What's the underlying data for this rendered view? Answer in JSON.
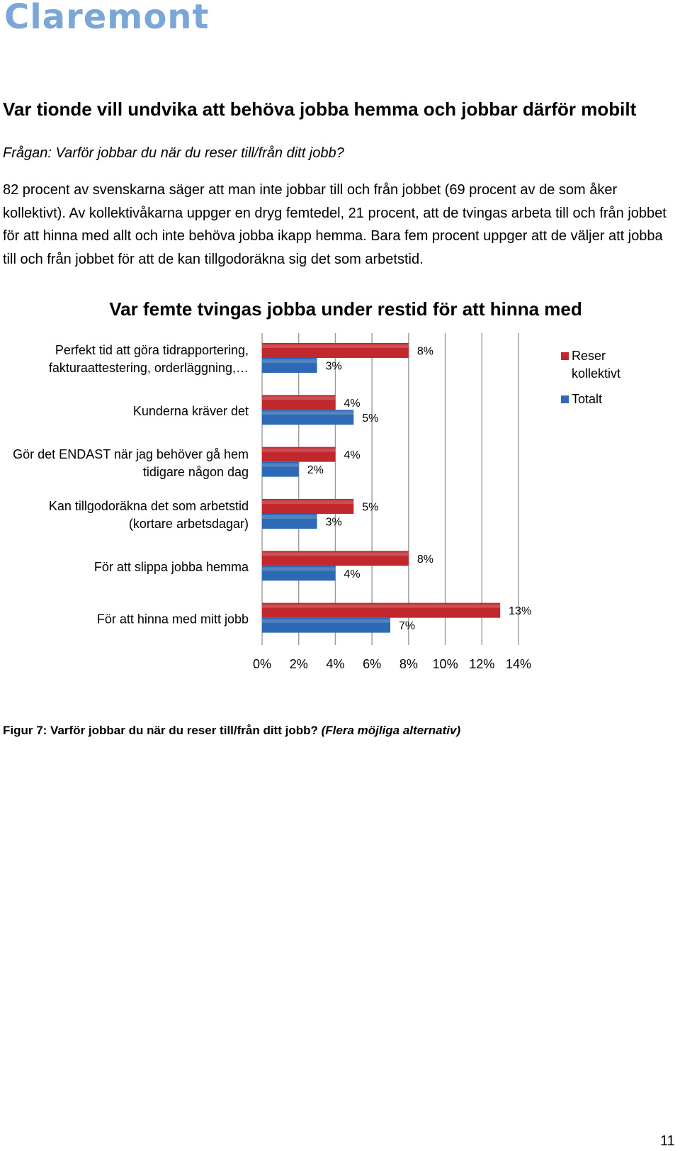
{
  "logo": {
    "text": "Claremont",
    "color": "#7aa7d8"
  },
  "heading": "Var tionde vill undvika att behöva jobba hemma och jobbar därför mobilt",
  "question": "Frågan: Varför jobbar du när du reser till/från ditt jobb?",
  "body_text": "82 procent av svenskarna säger att man inte jobbar till och från jobbet (69 procent av de som åker kollektivt). Av kollektivåkarna uppger en dryg femtedel, 21 procent, att de tvingas arbeta till och från jobbet för att hinna med allt och inte behöva jobba ikapp hemma. Bara fem procent uppger att de väljer att jobba till och från jobbet för att de kan tillgodoräkna sig det som arbetstid.",
  "caption": {
    "main": "Figur 7: Varför jobbar du när du reser till/från ditt jobb?",
    "note": "(Flera möjliga alternativ)"
  },
  "page_number": "11",
  "chart_data": {
    "type": "bar",
    "orientation": "horizontal",
    "title": "Var femte tvingas jobba under restid för att hinna med",
    "xlim": [
      0,
      14
    ],
    "x_ticks": [
      0,
      2,
      4,
      6,
      8,
      10,
      12,
      14
    ],
    "x_tick_labels": [
      "0%",
      "2%",
      "4%",
      "6%",
      "8%",
      "10%",
      "12%",
      "14%"
    ],
    "gridlines": "vertical",
    "legend_position": "right",
    "categories": [
      [
        "Perfekt tid att göra tidrapportering,",
        "fakturaattestering, orderläggning,…"
      ],
      [
        "Kunderna kräver det"
      ],
      [
        "Gör det ENDAST när jag behöver gå hem",
        "tidigare någon dag"
      ],
      [
        "Kan tillgodoräkna det som arbetstid",
        "(kortare arbetsdagar)"
      ],
      [
        "För att slippa jobba hemma"
      ],
      [
        "För att hinna med mitt jobb"
      ]
    ],
    "series": [
      {
        "name": [
          "Reser",
          "kollektivt"
        ],
        "color": "#c0282d",
        "values": [
          8,
          4,
          4,
          5,
          8,
          13
        ],
        "labels": [
          "8%",
          "4%",
          "4%",
          "5%",
          "8%",
          "13%"
        ]
      },
      {
        "name": [
          "Totalt"
        ],
        "color": "#2e69b5",
        "values": [
          3,
          5,
          2,
          3,
          4,
          7
        ],
        "labels": [
          "3%",
          "5%",
          "2%",
          "3%",
          "4%",
          "7%"
        ]
      }
    ]
  }
}
